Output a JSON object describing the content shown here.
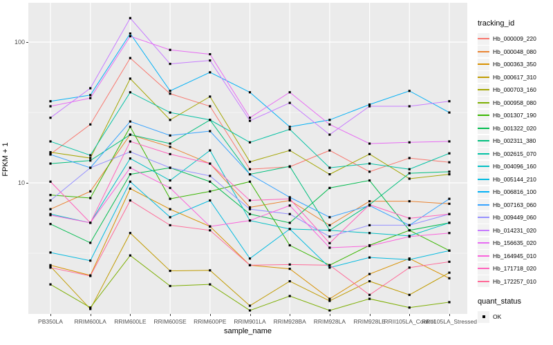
{
  "figure": {
    "y_axis": {
      "title": "FPKM + 1",
      "ticks": [
        {
          "label": "100",
          "value": 100
        },
        {
          "label": "10",
          "value": 10
        }
      ]
    },
    "x_axis": {
      "title": "sample_name"
    },
    "legend": {
      "tracking_title": "tracking_id",
      "quant_title": "quant_status",
      "quant_items": [
        {
          "label": "OK",
          "marker": "filled-square"
        }
      ]
    },
    "colors": {
      "panel_bg": "#EBEBEB",
      "grid": "#FFFFFF",
      "axis_text": "#4D4D4D",
      "point": "#000000",
      "legend_key_bg": "#F2F2F2"
    }
  },
  "chart_data": {
    "type": "line",
    "title": "",
    "xlabel": "sample_name",
    "ylabel": "FPKM + 1",
    "x_scale": "categorical",
    "y_scale": "log10",
    "ylim": [
      1.1,
      180
    ],
    "y_major": [
      100,
      10
    ],
    "y_minor": [
      31.623,
      3.1623
    ],
    "grid": true,
    "legend_position": "right",
    "point_shape": "filled-square",
    "point_color": "#000000",
    "point_legend": {
      "title": "quant_status",
      "items": [
        "OK"
      ]
    },
    "categories": [
      "PB350LA",
      "RRIM600LA",
      "RRIM600LE",
      "RRIM600SE",
      "RRIM600PE",
      "RRIM901LA",
      "RRIM928BA",
      "RRIM928LA",
      "RRIM928LE",
      "RRII105LA_Control",
      "RRII105LA_Stressed"
    ],
    "series": [
      {
        "name": "Hb_000009_220",
        "color": "#F8766D",
        "values": [
          16,
          26,
          77,
          43,
          35,
          12.5,
          13,
          17,
          12,
          15,
          14
        ]
      },
      {
        "name": "Hb_000048_080",
        "color": "#EA8331",
        "values": [
          6.5,
          8.7,
          22,
          18,
          13.7,
          6.7,
          7.5,
          5.0,
          7.4,
          7.4,
          7.1
        ]
      },
      {
        "name": "Hb_000363_350",
        "color": "#D89000",
        "values": [
          2.6,
          2.2,
          9.1,
          6.5,
          4.9,
          2.6,
          2.45,
          1.5,
          2.25,
          2.9,
          2.1
        ]
      },
      {
        "name": "Hb_000617_310",
        "color": "#C09B00",
        "values": [
          2.55,
          1.27,
          4.4,
          2.37,
          2.39,
          1.34,
          2.0,
          1.45,
          2.0,
          1.6,
          2.3
        ]
      },
      {
        "name": "Hb_000703_160",
        "color": "#A3A500",
        "values": [
          16.5,
          15,
          55,
          28,
          41,
          14.1,
          17,
          11.5,
          16,
          10.7,
          11.5
        ]
      },
      {
        "name": "Hb_000958_080",
        "color": "#7CAE00",
        "values": [
          1.9,
          1.3,
          3.05,
          1.85,
          1.9,
          1.24,
          1.57,
          1.24,
          1.5,
          1.3,
          1.42
        ]
      },
      {
        "name": "Hb_001307_190",
        "color": "#39B600",
        "values": [
          8.2,
          7.8,
          25,
          7.7,
          8.7,
          10.2,
          3.6,
          2.6,
          3.6,
          4.6,
          3.3
        ]
      },
      {
        "name": "Hb_001322_020",
        "color": "#00BB4E",
        "values": [
          5.1,
          3.75,
          11.5,
          12.8,
          10.2,
          6.0,
          5.2,
          9.2,
          10.4,
          4.6,
          5.2
        ]
      },
      {
        "name": "Hb_002311_380",
        "color": "#00BF7D",
        "values": [
          13.7,
          14.4,
          22,
          19,
          28,
          11.5,
          13.1,
          4.6,
          7.0,
          11.7,
          12.0
        ]
      },
      {
        "name": "Hb_002615_070",
        "color": "#00C1A3",
        "values": [
          19.7,
          15.7,
          44,
          31.6,
          28,
          19.4,
          24,
          12.8,
          13.7,
          12.5,
          16.2
        ]
      },
      {
        "name": "Hb_004096_160",
        "color": "#00BFC4",
        "values": [
          6.0,
          5.2,
          14.9,
          10.4,
          17,
          5.4,
          4.7,
          4.6,
          4.4,
          4.2,
          5.2
        ]
      },
      {
        "name": "Hb_005144_210",
        "color": "#00BAE0",
        "values": [
          3.2,
          2.8,
          10.2,
          5.7,
          7.5,
          2.9,
          4.7,
          2.5,
          2.95,
          2.85,
          3.3
        ]
      },
      {
        "name": "Hb_006816_100",
        "color": "#00B0F6",
        "values": [
          38,
          42,
          115,
          45,
          61,
          44,
          25,
          28,
          36,
          45,
          31.6
        ]
      },
      {
        "name": "Hb_007163_060",
        "color": "#35A2FF",
        "values": [
          15.9,
          12.8,
          27.3,
          21.7,
          23.3,
          11.5,
          7.9,
          5.7,
          6.9,
          5.0,
          7.7
        ]
      },
      {
        "name": "Hb_009449_060",
        "color": "#9590FF",
        "values": [
          7.5,
          12.8,
          16.6,
          12.8,
          11.2,
          6.5,
          6.0,
          4.15,
          5.0,
          5.0,
          6.0
        ]
      },
      {
        "name": "Hb_014231_020",
        "color": "#C77CFF",
        "values": [
          29,
          47,
          148,
          70,
          74,
          27.6,
          37,
          22,
          35,
          35,
          38
        ]
      },
      {
        "name": "Hb_156635_020",
        "color": "#E76BF3",
        "values": [
          35,
          40,
          110,
          88,
          82,
          29,
          44,
          26,
          19,
          19.4,
          19.7
        ]
      },
      {
        "name": "Hb_164945_010",
        "color": "#FA62DB",
        "values": [
          5.9,
          5.2,
          12.8,
          9.2,
          4.9,
          5.4,
          6.9,
          3.46,
          3.56,
          4.15,
          4.4
        ]
      },
      {
        "name": "Hb_171718_020",
        "color": "#FF62BC",
        "values": [
          10.2,
          5.2,
          19.7,
          16,
          13.7,
          7.5,
          7.7,
          3.73,
          7.0,
          5.6,
          6.0
        ]
      },
      {
        "name": "Hb_172257_010",
        "color": "#FF6A98",
        "values": [
          2.5,
          2.18,
          7.5,
          5.0,
          4.6,
          2.6,
          2.63,
          2.6,
          1.6,
          2.5,
          2.75
        ]
      }
    ]
  }
}
